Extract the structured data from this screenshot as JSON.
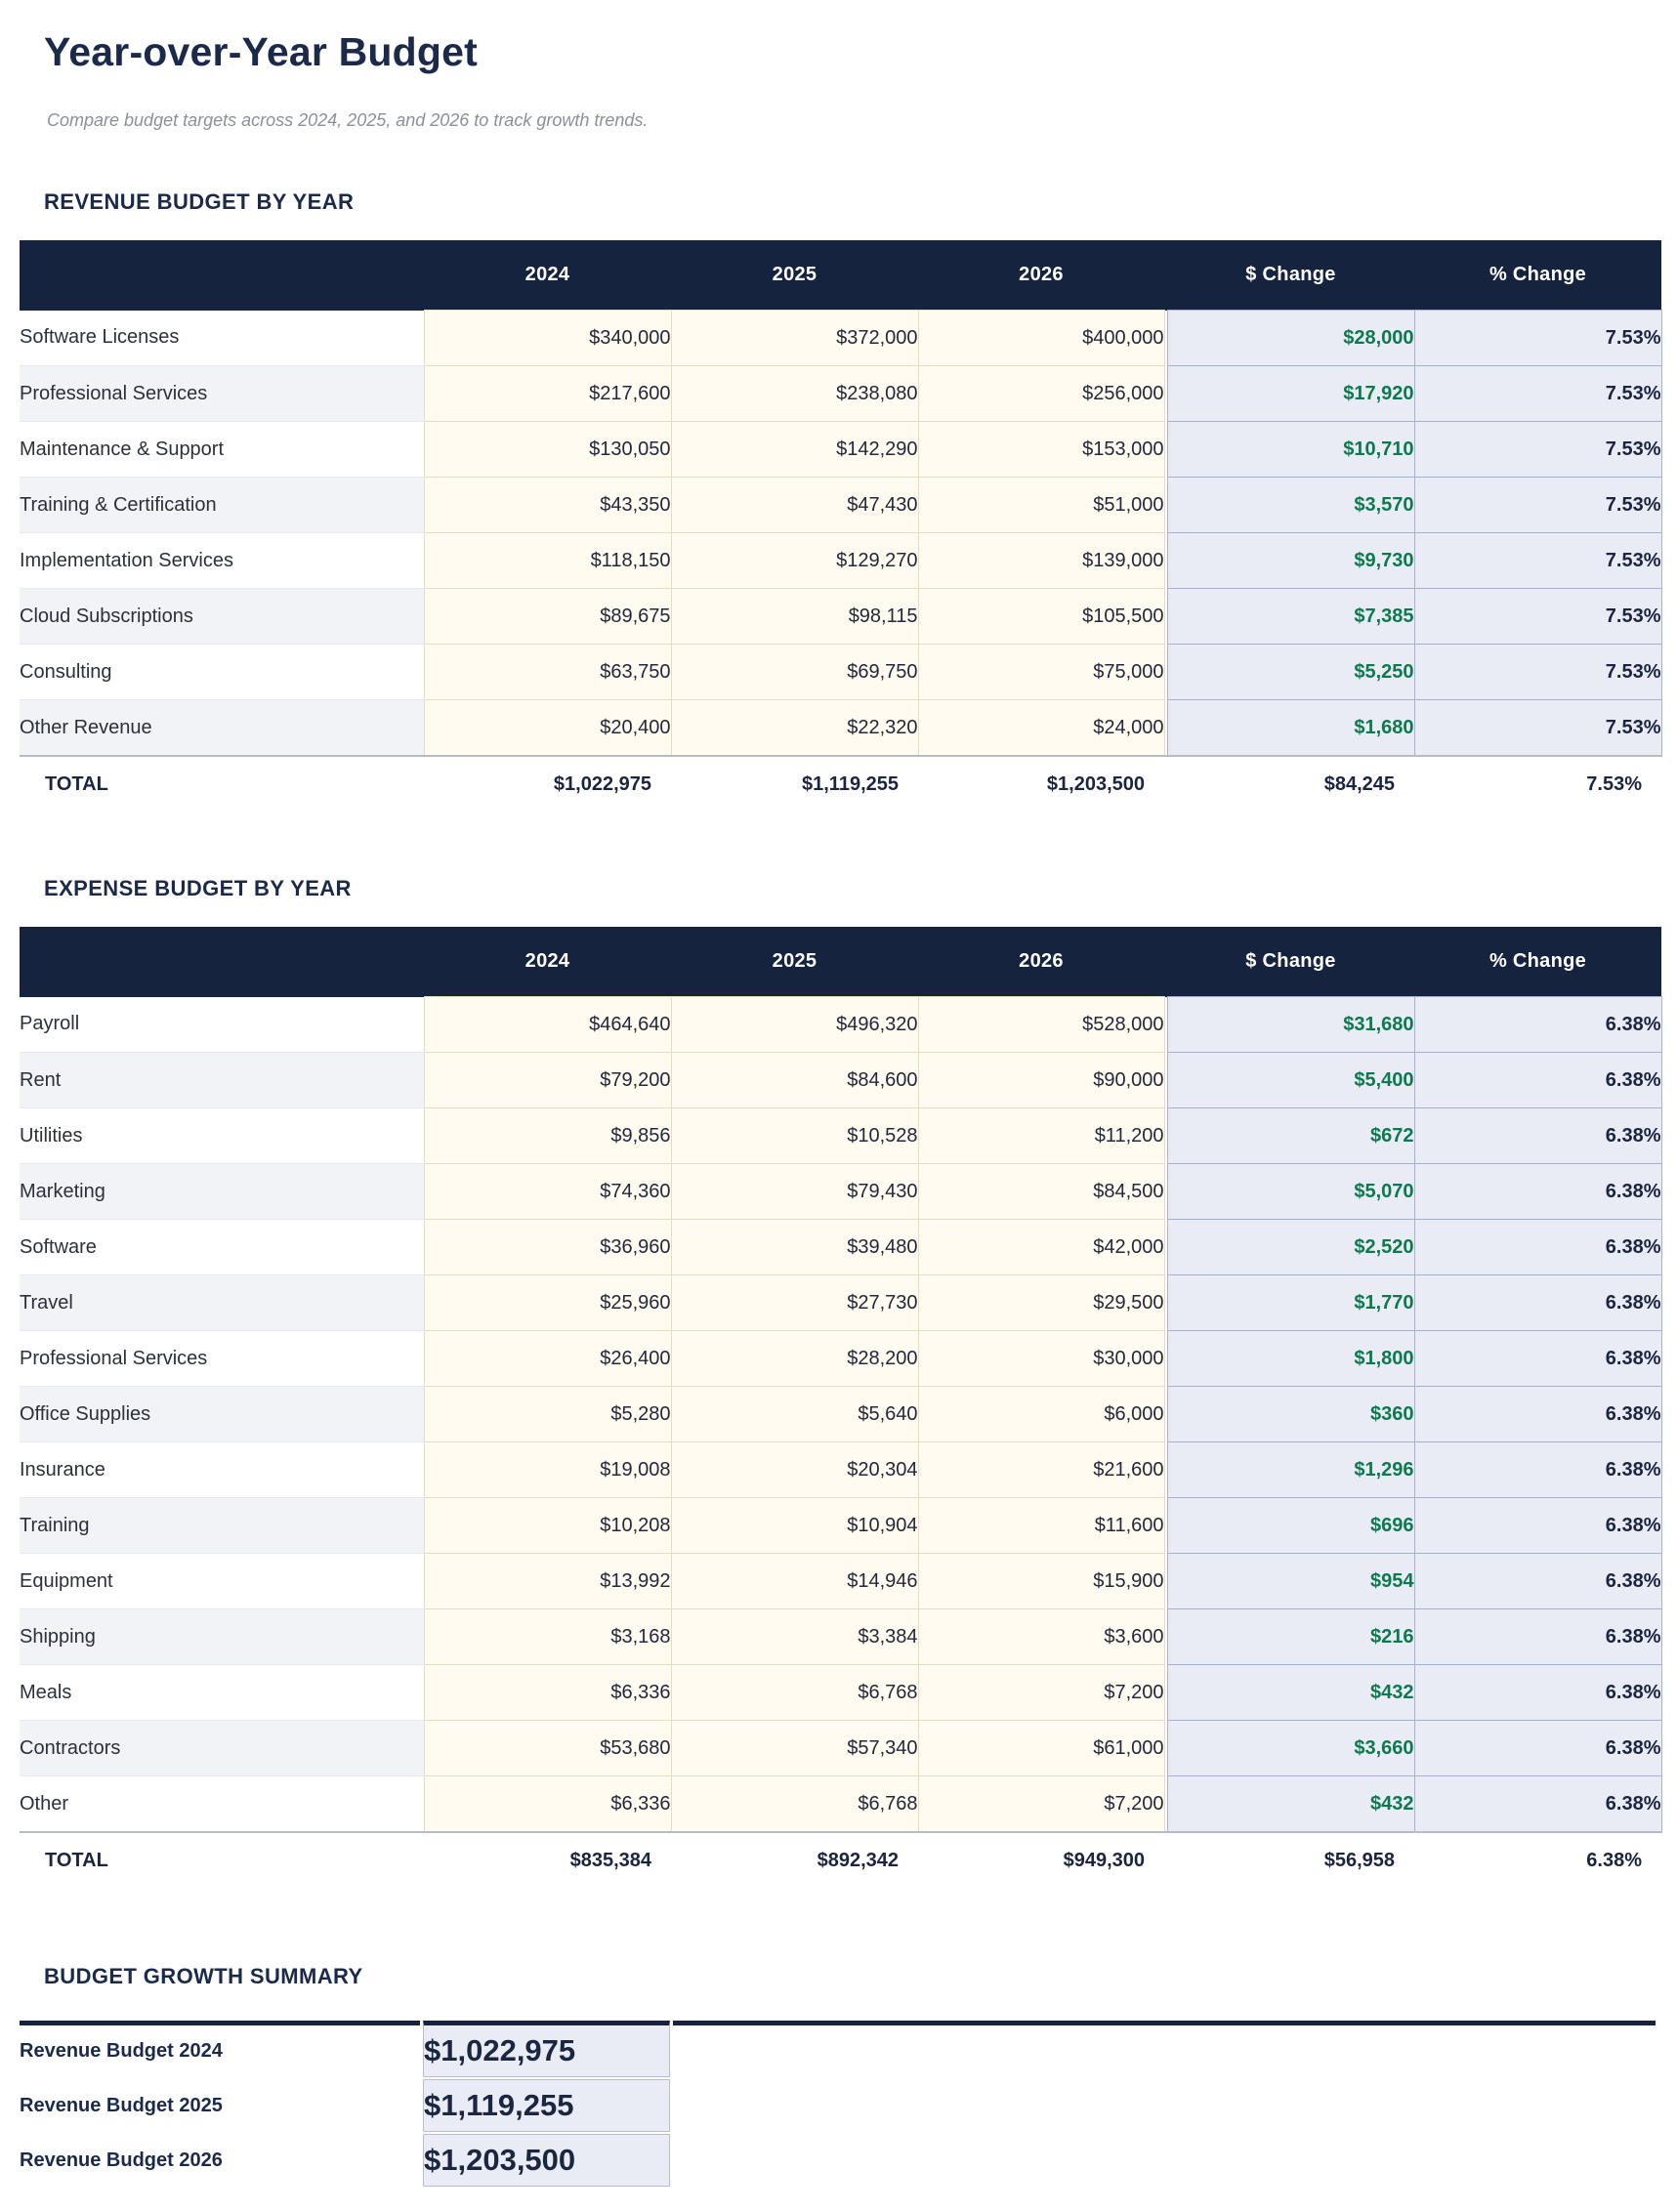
{
  "page": {
    "title": "Year-over-Year Budget",
    "subtitle": "Compare budget targets across 2024, 2025, and 2026 to track growth trends."
  },
  "columns": [
    "",
    "2024",
    "2025",
    "2026",
    "$ Change",
    "% Change"
  ],
  "revenue": {
    "section_title": "REVENUE BUDGET BY YEAR",
    "rows": [
      {
        "label": "Software Licenses",
        "values": [
          "$340,000",
          "$372,000",
          "$400,000"
        ],
        "change": "$28,000",
        "pct": "7.53%"
      },
      {
        "label": "Professional Services",
        "values": [
          "$217,600",
          "$238,080",
          "$256,000"
        ],
        "change": "$17,920",
        "pct": "7.53%"
      },
      {
        "label": "Maintenance & Support",
        "values": [
          "$130,050",
          "$142,290",
          "$153,000"
        ],
        "change": "$10,710",
        "pct": "7.53%"
      },
      {
        "label": "Training & Certification",
        "values": [
          "$43,350",
          "$47,430",
          "$51,000"
        ],
        "change": "$3,570",
        "pct": "7.53%"
      },
      {
        "label": "Implementation Services",
        "values": [
          "$118,150",
          "$129,270",
          "$139,000"
        ],
        "change": "$9,730",
        "pct": "7.53%"
      },
      {
        "label": "Cloud Subscriptions",
        "values": [
          "$89,675",
          "$98,115",
          "$105,500"
        ],
        "change": "$7,385",
        "pct": "7.53%"
      },
      {
        "label": "Consulting",
        "values": [
          "$63,750",
          "$69,750",
          "$75,000"
        ],
        "change": "$5,250",
        "pct": "7.53%"
      },
      {
        "label": "Other Revenue",
        "values": [
          "$20,400",
          "$22,320",
          "$24,000"
        ],
        "change": "$1,680",
        "pct": "7.53%"
      }
    ],
    "total": {
      "label": "TOTAL",
      "values": [
        "$1,022,975",
        "$1,119,255",
        "$1,203,500"
      ],
      "change": "$84,245",
      "pct": "7.53%"
    }
  },
  "expense": {
    "section_title": "EXPENSE BUDGET BY YEAR",
    "rows": [
      {
        "label": "Payroll",
        "values": [
          "$464,640",
          "$496,320",
          "$528,000"
        ],
        "change": "$31,680",
        "pct": "6.38%"
      },
      {
        "label": "Rent",
        "values": [
          "$79,200",
          "$84,600",
          "$90,000"
        ],
        "change": "$5,400",
        "pct": "6.38%"
      },
      {
        "label": "Utilities",
        "values": [
          "$9,856",
          "$10,528",
          "$11,200"
        ],
        "change": "$672",
        "pct": "6.38%"
      },
      {
        "label": "Marketing",
        "values": [
          "$74,360",
          "$79,430",
          "$84,500"
        ],
        "change": "$5,070",
        "pct": "6.38%"
      },
      {
        "label": "Software",
        "values": [
          "$36,960",
          "$39,480",
          "$42,000"
        ],
        "change": "$2,520",
        "pct": "6.38%"
      },
      {
        "label": "Travel",
        "values": [
          "$25,960",
          "$27,730",
          "$29,500"
        ],
        "change": "$1,770",
        "pct": "6.38%"
      },
      {
        "label": "Professional Services",
        "values": [
          "$26,400",
          "$28,200",
          "$30,000"
        ],
        "change": "$1,800",
        "pct": "6.38%"
      },
      {
        "label": "Office Supplies",
        "values": [
          "$5,280",
          "$5,640",
          "$6,000"
        ],
        "change": "$360",
        "pct": "6.38%"
      },
      {
        "label": "Insurance",
        "values": [
          "$19,008",
          "$20,304",
          "$21,600"
        ],
        "change": "$1,296",
        "pct": "6.38%"
      },
      {
        "label": "Training",
        "values": [
          "$10,208",
          "$10,904",
          "$11,600"
        ],
        "change": "$696",
        "pct": "6.38%"
      },
      {
        "label": "Equipment",
        "values": [
          "$13,992",
          "$14,946",
          "$15,900"
        ],
        "change": "$954",
        "pct": "6.38%"
      },
      {
        "label": "Shipping",
        "values": [
          "$3,168",
          "$3,384",
          "$3,600"
        ],
        "change": "$216",
        "pct": "6.38%"
      },
      {
        "label": "Meals",
        "values": [
          "$6,336",
          "$6,768",
          "$7,200"
        ],
        "change": "$432",
        "pct": "6.38%"
      },
      {
        "label": "Contractors",
        "values": [
          "$53,680",
          "$57,340",
          "$61,000"
        ],
        "change": "$3,660",
        "pct": "6.38%"
      },
      {
        "label": "Other",
        "values": [
          "$6,336",
          "$6,768",
          "$7,200"
        ],
        "change": "$432",
        "pct": "6.38%"
      }
    ],
    "total": {
      "label": "TOTAL",
      "values": [
        "$835,384",
        "$892,342",
        "$949,300"
      ],
      "change": "$56,958",
      "pct": "6.38%"
    }
  },
  "summary": {
    "section_title": "BUDGET GROWTH SUMMARY",
    "rows": [
      {
        "label": "Revenue Budget 2024",
        "value": "$1,022,975"
      },
      {
        "label": "Revenue Budget 2025",
        "value": "$1,119,255"
      },
      {
        "label": "Revenue Budget 2026",
        "value": "$1,203,500"
      }
    ]
  },
  "colors": {
    "header_navy": "#16233f",
    "title_navy": "#1b2a4a",
    "positive_green": "#0c7a4e",
    "year_cell_cream": "#fffbf0",
    "year_cell_border": "#e5ddc2",
    "change_cell_blue": "#e9ecf5",
    "change_cell_border": "#a7b1ce",
    "row_stripe_gray": "#f1f3f6",
    "subtitle_gray": "#8b909a"
  }
}
